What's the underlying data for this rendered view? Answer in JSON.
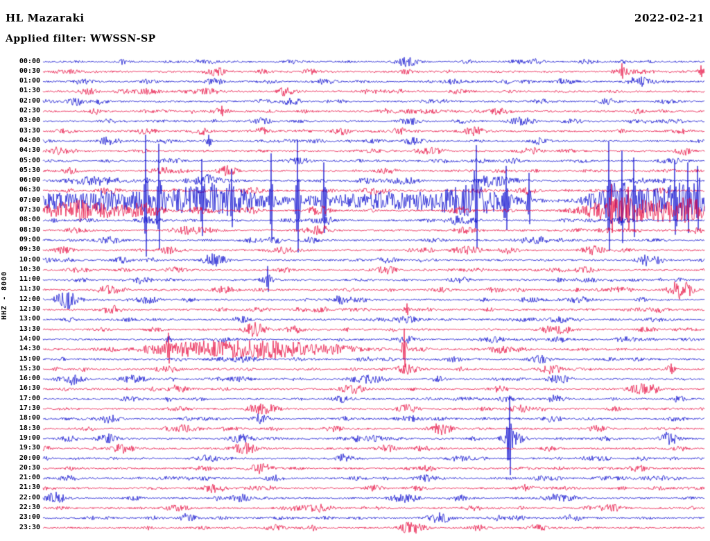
{
  "header": {
    "station": "HL Mazaraki",
    "date": "2022-02-21",
    "filter": "Applied filter: WWSSN-SP"
  },
  "axis": {
    "left_label": "HHZ - 8000"
  },
  "chart_data": {
    "type": "line",
    "variant": "helicorder-seismogram",
    "title": "HL Mazaraki",
    "date": "2022-02-21",
    "filter": "WWSSN-SP",
    "channel_gain_label": "HHZ - 8000",
    "minutes_per_row": 30,
    "legend_position": "none",
    "grid": false,
    "row_labels": [
      "00:00",
      "00:30",
      "01:00",
      "01:30",
      "02:00",
      "02:30",
      "03:00",
      "03:30",
      "04:00",
      "04:30",
      "05:00",
      "05:30",
      "06:00",
      "06:30",
      "07:00",
      "07:30",
      "08:00",
      "08:30",
      "09:00",
      "09:30",
      "10:00",
      "10:30",
      "11:00",
      "11:30",
      "12:00",
      "12:30",
      "13:00",
      "13:30",
      "14:00",
      "14:30",
      "15:00",
      "15:30",
      "16:00",
      "16:30",
      "17:00",
      "17:30",
      "18:00",
      "18:30",
      "19:00",
      "19:30",
      "20:00",
      "20:30",
      "21:00",
      "21:30",
      "22:00",
      "22:30",
      "23:00",
      "23:30"
    ],
    "colors": {
      "even_row": "#0000cc",
      "odd_row": "#e60038",
      "text": "#000000",
      "background": "#ffffff"
    },
    "base_noise_amplitude": 1.15,
    "events_format": [
      "row_index",
      "position_fraction_along_row",
      "gaussian_halfwidth_fraction",
      "amplitude_px"
    ],
    "events": [
      [
        0,
        0.55,
        0.012,
        6
      ],
      [
        0,
        0.25,
        0.01,
        2.5
      ],
      [
        0,
        0.75,
        0.01,
        2
      ],
      [
        1,
        0.26,
        0.012,
        5
      ],
      [
        1,
        0.875,
        0.002,
        12
      ],
      [
        1,
        0.878,
        0.008,
        4
      ],
      [
        1,
        0.995,
        0.003,
        9
      ],
      [
        1,
        0.55,
        0.01,
        2.5
      ],
      [
        2,
        0.06,
        0.01,
        4
      ],
      [
        2,
        0.16,
        0.008,
        3
      ],
      [
        2,
        0.26,
        0.01,
        4
      ],
      [
        2,
        0.9,
        0.012,
        5
      ],
      [
        2,
        0.7,
        0.008,
        3
      ],
      [
        3,
        0.07,
        0.01,
        4
      ],
      [
        3,
        0.25,
        0.012,
        5
      ],
      [
        3,
        0.37,
        0.01,
        4
      ],
      [
        3,
        0.63,
        0.01,
        3
      ],
      [
        4,
        0.375,
        0.012,
        4.5
      ],
      [
        4,
        0.6,
        0.01,
        2.5
      ],
      [
        4,
        0.85,
        0.008,
        2.5
      ],
      [
        5,
        0.27,
        0.003,
        8
      ],
      [
        5,
        0.27,
        0.01,
        4
      ],
      [
        5,
        0.52,
        0.01,
        4
      ],
      [
        5,
        0.69,
        0.01,
        5
      ],
      [
        5,
        0.9,
        0.008,
        3
      ],
      [
        6,
        0.33,
        0.01,
        5
      ],
      [
        6,
        0.1,
        0.01,
        3
      ],
      [
        6,
        0.55,
        0.01,
        3.5
      ],
      [
        6,
        0.8,
        0.01,
        3
      ],
      [
        7,
        0.24,
        0.01,
        5
      ],
      [
        7,
        0.33,
        0.01,
        5
      ],
      [
        7,
        0.45,
        0.01,
        4
      ],
      [
        7,
        0.54,
        0.01,
        4
      ],
      [
        7,
        0.65,
        0.012,
        5
      ],
      [
        8,
        0.25,
        0.003,
        9
      ],
      [
        8,
        0.56,
        0.01,
        5
      ],
      [
        8,
        0.1,
        0.01,
        3
      ],
      [
        8,
        0.75,
        0.01,
        4
      ],
      [
        9,
        0.02,
        0.01,
        5
      ],
      [
        9,
        0.58,
        0.012,
        4
      ],
      [
        9,
        0.74,
        0.01,
        4
      ],
      [
        9,
        0.97,
        0.008,
        5
      ],
      [
        10,
        0.39,
        0.01,
        4
      ],
      [
        10,
        0.66,
        0.01,
        4
      ],
      [
        10,
        0.2,
        0.008,
        3
      ],
      [
        11,
        0.04,
        0.01,
        4
      ],
      [
        11,
        0.18,
        0.01,
        5
      ],
      [
        11,
        0.28,
        0.01,
        5
      ],
      [
        11,
        0.52,
        0.01,
        4
      ],
      [
        12,
        0.08,
        0.03,
        6
      ],
      [
        12,
        0.25,
        0.015,
        8
      ],
      [
        12,
        0.55,
        0.012,
        5
      ],
      [
        12,
        0.68,
        0.015,
        7
      ],
      [
        12,
        0.9,
        0.01,
        4
      ],
      [
        13,
        0.1,
        0.012,
        5
      ],
      [
        13,
        0.5,
        0.012,
        6
      ],
      [
        13,
        0.73,
        0.01,
        4
      ],
      [
        14,
        0.13,
        0.13,
        13
      ],
      [
        14,
        0.27,
        0.04,
        17
      ],
      [
        14,
        0.52,
        0.07,
        11
      ],
      [
        14,
        0.65,
        0.045,
        18
      ],
      [
        14,
        0.875,
        0.035,
        24
      ],
      [
        14,
        0.97,
        0.03,
        26
      ],
      [
        14,
        0.155,
        0.002,
        95
      ],
      [
        14,
        0.175,
        0.002,
        82
      ],
      [
        14,
        0.24,
        0.002,
        60
      ],
      [
        14,
        0.285,
        0.002,
        45
      ],
      [
        14,
        0.345,
        0.002,
        68
      ],
      [
        14,
        0.385,
        0.002,
        88
      ],
      [
        14,
        0.425,
        0.002,
        55
      ],
      [
        14,
        0.655,
        0.002,
        80
      ],
      [
        14,
        0.7,
        0.002,
        50
      ],
      [
        14,
        0.735,
        0.002,
        40
      ],
      [
        14,
        0.855,
        0.002,
        85
      ],
      [
        14,
        0.875,
        0.002,
        72
      ],
      [
        14,
        0.893,
        0.002,
        62
      ],
      [
        14,
        0.955,
        0.002,
        58
      ],
      [
        14,
        0.975,
        0.002,
        55
      ],
      [
        14,
        0.99,
        0.002,
        50
      ],
      [
        15,
        0.06,
        0.06,
        12
      ],
      [
        15,
        0.16,
        0.015,
        6
      ],
      [
        15,
        0.42,
        0.012,
        5
      ],
      [
        15,
        0.63,
        0.012,
        5
      ],
      [
        15,
        0.875,
        0.04,
        18
      ],
      [
        15,
        0.86,
        0.002,
        38
      ],
      [
        15,
        0.885,
        0.002,
        34
      ],
      [
        15,
        0.97,
        0.03,
        16
      ],
      [
        16,
        0.16,
        0.012,
        6
      ],
      [
        16,
        0.42,
        0.012,
        5
      ],
      [
        16,
        0.63,
        0.015,
        6
      ],
      [
        16,
        0.87,
        0.012,
        5
      ],
      [
        17,
        0.05,
        0.01,
        4
      ],
      [
        17,
        0.21,
        0.012,
        5
      ],
      [
        17,
        0.42,
        0.01,
        4
      ],
      [
        17,
        0.64,
        0.012,
        5
      ],
      [
        18,
        0.1,
        0.012,
        5
      ],
      [
        18,
        0.35,
        0.01,
        4
      ],
      [
        18,
        0.75,
        0.01,
        4
      ],
      [
        19,
        0.19,
        0.012,
        5
      ],
      [
        19,
        0.64,
        0.015,
        6
      ],
      [
        19,
        0.83,
        0.01,
        4
      ],
      [
        20,
        0.12,
        0.01,
        4
      ],
      [
        20,
        0.26,
        0.012,
        8
      ],
      [
        20,
        0.52,
        0.01,
        4
      ],
      [
        20,
        0.92,
        0.012,
        5
      ],
      [
        21,
        0.2,
        0.01,
        4
      ],
      [
        21,
        0.52,
        0.012,
        5
      ],
      [
        21,
        0.82,
        0.01,
        4
      ],
      [
        22,
        0.15,
        0.01,
        5
      ],
      [
        22,
        0.34,
        0.002,
        20
      ],
      [
        22,
        0.34,
        0.01,
        4
      ],
      [
        22,
        0.63,
        0.01,
        4
      ],
      [
        23,
        0.1,
        0.012,
        6
      ],
      [
        23,
        0.27,
        0.01,
        4
      ],
      [
        23,
        0.965,
        0.012,
        15
      ],
      [
        23,
        0.6,
        0.01,
        3
      ],
      [
        24,
        0.035,
        0.012,
        14
      ],
      [
        24,
        0.16,
        0.01,
        4
      ],
      [
        24,
        0.45,
        0.01,
        4
      ],
      [
        24,
        0.81,
        0.012,
        5
      ],
      [
        25,
        0.1,
        0.01,
        4
      ],
      [
        25,
        0.42,
        0.01,
        4
      ],
      [
        25,
        0.55,
        0.003,
        9
      ],
      [
        25,
        0.93,
        0.01,
        4
      ],
      [
        26,
        0.3,
        0.01,
        4
      ],
      [
        26,
        0.55,
        0.012,
        5
      ],
      [
        26,
        0.78,
        0.01,
        4
      ],
      [
        27,
        0.32,
        0.012,
        7
      ],
      [
        27,
        0.38,
        0.01,
        5
      ],
      [
        27,
        0.77,
        0.01,
        4
      ],
      [
        28,
        0.19,
        0.003,
        6
      ],
      [
        28,
        0.55,
        0.01,
        4
      ],
      [
        28,
        0.68,
        0.012,
        5
      ],
      [
        28,
        0.78,
        0.01,
        4
      ],
      [
        29,
        0.245,
        0.055,
        11
      ],
      [
        29,
        0.355,
        0.045,
        11
      ],
      [
        29,
        0.19,
        0.002,
        24
      ],
      [
        29,
        0.45,
        0.03,
        4
      ],
      [
        29,
        0.546,
        0.002,
        30
      ],
      [
        29,
        0.69,
        0.012,
        5
      ],
      [
        30,
        0.62,
        0.01,
        4
      ],
      [
        30,
        0.75,
        0.012,
        5
      ],
      [
        30,
        0.3,
        0.008,
        3
      ],
      [
        31,
        0.19,
        0.01,
        5
      ],
      [
        31,
        0.55,
        0.012,
        6
      ],
      [
        31,
        0.77,
        0.012,
        7
      ],
      [
        31,
        0.95,
        0.003,
        8
      ],
      [
        32,
        0.04,
        0.012,
        6
      ],
      [
        32,
        0.13,
        0.01,
        5
      ],
      [
        32,
        0.3,
        0.01,
        4
      ],
      [
        32,
        0.48,
        0.012,
        5
      ],
      [
        32,
        0.78,
        0.012,
        6
      ],
      [
        33,
        0.2,
        0.01,
        4
      ],
      [
        33,
        0.47,
        0.012,
        5
      ],
      [
        33,
        0.69,
        0.01,
        4
      ],
      [
        33,
        0.9,
        0.01,
        4
      ],
      [
        34,
        0.19,
        0.003,
        5
      ],
      [
        34,
        0.45,
        0.01,
        4
      ],
      [
        34,
        0.7,
        0.01,
        4
      ],
      [
        35,
        0.34,
        0.012,
        5
      ],
      [
        35,
        0.55,
        0.01,
        4
      ],
      [
        35,
        0.72,
        0.01,
        4
      ],
      [
        36,
        0.1,
        0.012,
        6
      ],
      [
        36,
        0.33,
        0.01,
        5
      ],
      [
        36,
        0.56,
        0.01,
        4
      ],
      [
        36,
        0.77,
        0.01,
        4
      ],
      [
        37,
        0.21,
        0.012,
        5
      ],
      [
        37,
        0.44,
        0.01,
        4
      ],
      [
        37,
        0.6,
        0.012,
        5
      ],
      [
        37,
        0.84,
        0.01,
        4
      ],
      [
        38,
        0.705,
        0.002,
        62
      ],
      [
        38,
        0.71,
        0.012,
        9
      ],
      [
        38,
        0.1,
        0.01,
        5
      ],
      [
        38,
        0.3,
        0.012,
        6
      ],
      [
        38,
        0.5,
        0.01,
        4
      ],
      [
        38,
        0.945,
        0.01,
        10
      ],
      [
        39,
        0.12,
        0.012,
        6
      ],
      [
        39,
        0.3,
        0.012,
        7
      ],
      [
        39,
        0.52,
        0.01,
        5
      ],
      [
        39,
        0.77,
        0.01,
        4
      ],
      [
        40,
        0.25,
        0.012,
        5
      ],
      [
        40,
        0.46,
        0.01,
        4
      ],
      [
        40,
        0.63,
        0.012,
        5
      ],
      [
        40,
        0.83,
        0.01,
        4
      ],
      [
        41,
        0.33,
        0.012,
        7
      ],
      [
        41,
        0.58,
        0.01,
        4
      ],
      [
        41,
        0.9,
        0.01,
        4
      ],
      [
        42,
        0.04,
        0.01,
        4
      ],
      [
        42,
        0.35,
        0.01,
        4
      ],
      [
        42,
        0.58,
        0.012,
        5
      ],
      [
        42,
        0.94,
        0.003,
        6
      ],
      [
        43,
        0.26,
        0.012,
        6
      ],
      [
        43,
        0.5,
        0.01,
        4
      ],
      [
        43,
        0.73,
        0.01,
        4
      ],
      [
        44,
        0.02,
        0.012,
        8
      ],
      [
        44,
        0.3,
        0.01,
        4
      ],
      [
        44,
        0.55,
        0.012,
        5
      ],
      [
        44,
        0.63,
        0.01,
        4
      ],
      [
        44,
        0.77,
        0.012,
        5
      ],
      [
        45,
        0.2,
        0.01,
        4
      ],
      [
        45,
        0.42,
        0.012,
        5
      ],
      [
        45,
        0.65,
        0.01,
        4
      ],
      [
        45,
        0.85,
        0.01,
        4
      ],
      [
        46,
        0.22,
        0.01,
        4
      ],
      [
        46,
        0.6,
        0.012,
        5
      ],
      [
        46,
        0.8,
        0.01,
        4
      ],
      [
        47,
        0.35,
        0.01,
        4
      ],
      [
        47,
        0.56,
        0.012,
        5
      ],
      [
        47,
        0.75,
        0.01,
        4
      ]
    ]
  }
}
